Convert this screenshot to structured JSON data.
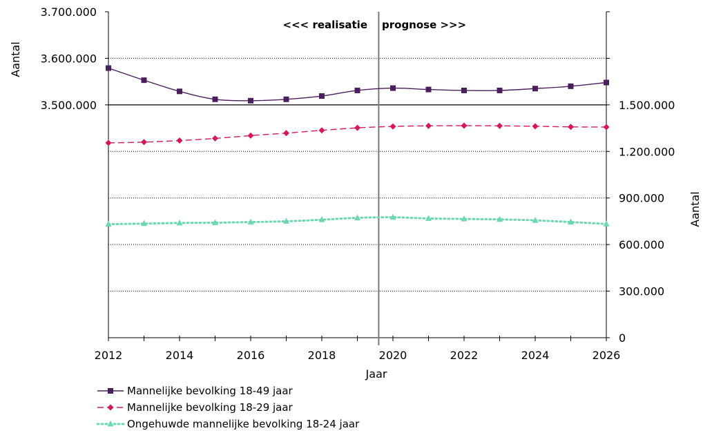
{
  "chart_data": {
    "type": "line",
    "x": [
      2012,
      2013,
      2014,
      2015,
      2016,
      2017,
      2018,
      2019,
      2020,
      2021,
      2022,
      2023,
      2024,
      2025,
      2026
    ],
    "x_ticks": [
      "2012",
      "2014",
      "2016",
      "2018",
      "2020",
      "2022",
      "2024",
      "2026"
    ],
    "xlabel": "Jaar",
    "ylabel_left": "Aantal",
    "ylabel_right": "Aantal",
    "ylim_left": [
      3500000,
      3700000
    ],
    "yticks_left": [
      "3.500.000",
      "3.600.000",
      "3.700.000"
    ],
    "ylim_right": [
      0,
      2100000
    ],
    "yticks_right": [
      "0",
      "300.000",
      "600.000",
      "900.000",
      "1.200.000",
      "1.500.000"
    ],
    "grid": true,
    "legend_position": "bottom-left",
    "divider_x": 2019.6,
    "annotations": {
      "left": "<<< realisatie",
      "right": "prognose >>>"
    },
    "series": [
      {
        "name": "Mannelijke bevolking 18-49 jaar",
        "axis": "left",
        "color": "#4b1e5e",
        "marker": "square",
        "dash": "solid",
        "values": [
          3579000,
          3553000,
          3529000,
          3512000,
          3509000,
          3512000,
          3519000,
          3531000,
          3536000,
          3533000,
          3531000,
          3531000,
          3535000,
          3540000,
          3548000
        ]
      },
      {
        "name": "Mannelijke bevolking 18-29 jaar",
        "axis": "right",
        "color": "#d6175a",
        "marker": "diamond",
        "dash": "dashed",
        "values": [
          1255000,
          1260000,
          1270000,
          1284000,
          1302000,
          1318000,
          1336000,
          1352000,
          1361000,
          1365000,
          1366000,
          1365000,
          1362000,
          1358000,
          1357000
        ]
      },
      {
        "name": "Ongehuwde mannelijke bevolking 18-24 jaar",
        "axis": "right",
        "color": "#6cd8b0",
        "marker": "triangle",
        "dash": "dotted",
        "values": [
          731000,
          735000,
          739000,
          741000,
          745000,
          750000,
          760000,
          772000,
          776000,
          768000,
          765000,
          762000,
          756000,
          745000,
          733000
        ]
      }
    ]
  }
}
